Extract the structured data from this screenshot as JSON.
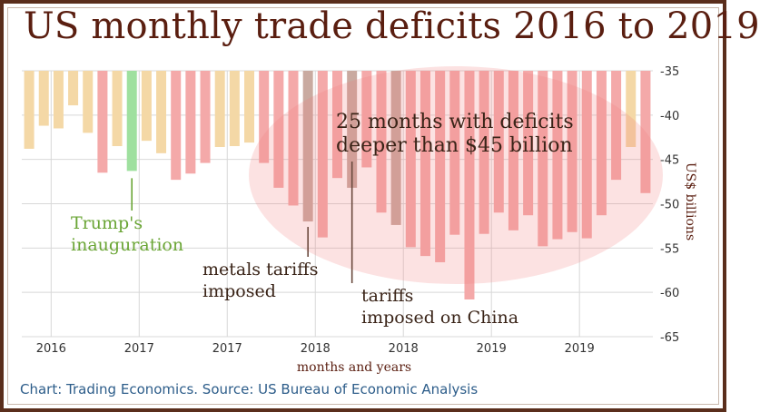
{
  "title": "US monthly trade deficits 2016 to 2019",
  "source": "Chart: Trading Economics. Source: US Bureau of Economic Analysis",
  "chart_data": {
    "type": "bar",
    "xlabel": "months and years",
    "ylabel": "US$ billions",
    "ylim": [
      -65,
      -35
    ],
    "y_ticks": [
      -35,
      -40,
      -45,
      -50,
      -55,
      -60,
      -65
    ],
    "y_tick_labels": [
      "-35",
      "-40",
      "-45",
      "-50",
      "-55",
      "-60",
      "-65"
    ],
    "x_tick_labels": [
      "2016",
      "2017",
      "2017",
      "2018",
      "2018",
      "2019",
      "2019"
    ],
    "x_tick_after_bar": [
      1,
      7,
      13,
      19,
      25,
      31,
      37
    ],
    "grid": true,
    "values": [
      -43.8,
      -41.2,
      -41.5,
      -38.9,
      -42,
      -46.5,
      -43.5,
      -46.3,
      -42.9,
      -44.3,
      -47.3,
      -46.6,
      -45.4,
      -43.6,
      -43.5,
      -43.1,
      -45.4,
      -48.2,
      -50.2,
      -52,
      -53.8,
      -47.1,
      -48.2,
      -45.9,
      -51,
      -52.4,
      -54.9,
      -55.9,
      -56.6,
      -53.5,
      -60.8,
      -53.4,
      -51,
      -53,
      -51.3,
      -54.8,
      -54,
      -53.2,
      -53.9,
      -51.3,
      -47.3,
      -43.6,
      -48.8
    ],
    "colors": {
      "normal": "#f4d8a6",
      "deep": "#f4a9a9",
      "inauguration": "#9fe09f",
      "tariff_event": "#c9aaa0",
      "ellipse": "#f07a7a",
      "grid": "#d8d8d8"
    },
    "highlight": {
      "inauguration_index": 7,
      "tariff_indices": [
        19,
        22,
        25
      ]
    },
    "deep_threshold": -45,
    "annotations": {
      "deficits_line1": "25 months with deficits",
      "deficits_line2": "deeper than $45 billion",
      "trump_line1": "Trump's",
      "trump_line2": "inauguration",
      "metals_line1": "metals tariffs",
      "metals_line2": "imposed",
      "china_line1": "tariffs",
      "china_line2": "imposed on China"
    }
  }
}
